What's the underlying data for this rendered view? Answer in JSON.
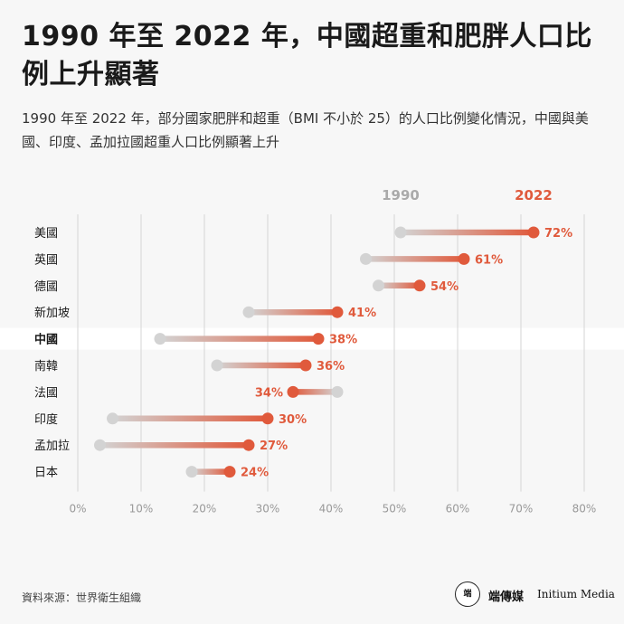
{
  "header": {
    "title": "1990 年至 2022 年，中國超重和肥胖人口比例上升顯著",
    "subtitle": "1990 年至 2022 年，部分國家肥胖和超重（BMI 不小於 25）的人口比例變化情況，中國與美國、印度、孟加拉國超重人口比例顯著上升"
  },
  "footer": {
    "source": "資料來源：世界衛生組織",
    "brand_cn": "端傳媒",
    "brand_en": "Initium Media",
    "logo_text": "端"
  },
  "colors": {
    "start": "#d3d3d3",
    "end": "#e05a3c",
    "grid": "#dcdcdc",
    "axis_text": "#999999",
    "highlight_band": "#ffffff"
  },
  "chart_data": {
    "type": "dumbbell",
    "title": "",
    "xlabel": "",
    "ylabel": "",
    "xlim": [
      0,
      80
    ],
    "x_ticks": [
      "0%",
      "10%",
      "20%",
      "30%",
      "40%",
      "50%",
      "60%",
      "70%",
      "80%"
    ],
    "x_tick_values": [
      0,
      10,
      20,
      30,
      40,
      50,
      60,
      70,
      80
    ],
    "legend": [
      {
        "name": "1990",
        "position": "top"
      },
      {
        "name": "2022",
        "position": "top"
      }
    ],
    "highlight": "中國",
    "rows": [
      {
        "country": "美國",
        "y1990": 51,
        "y2022": 72,
        "label": "72%"
      },
      {
        "country": "英國",
        "y1990": 45.5,
        "y2022": 61,
        "label": "61%"
      },
      {
        "country": "德國",
        "y1990": 47.5,
        "y2022": 54,
        "label": "54%"
      },
      {
        "country": "新加坡",
        "y1990": 27,
        "y2022": 41,
        "label": "41%"
      },
      {
        "country": "中國",
        "y1990": 13,
        "y2022": 38,
        "label": "38%"
      },
      {
        "country": "南韓",
        "y1990": 22,
        "y2022": 36,
        "label": "36%"
      },
      {
        "country": "法國",
        "y1990": 41,
        "y2022": 34,
        "label": "34%"
      },
      {
        "country": "印度",
        "y1990": 5.5,
        "y2022": 30,
        "label": "30%"
      },
      {
        "country": "孟加拉",
        "y1990": 3.5,
        "y2022": 27,
        "label": "27%"
      },
      {
        "country": "日本",
        "y1990": 18,
        "y2022": 24,
        "label": "24%"
      }
    ]
  }
}
